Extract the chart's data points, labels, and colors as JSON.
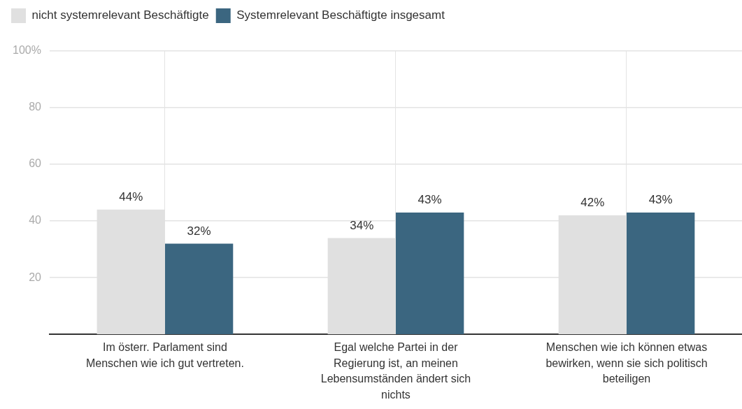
{
  "chart_data": {
    "type": "bar",
    "categories": [
      "Im österr. Parlament sind Menschen wie ich gut vertreten.",
      "Egal welche Partei in der Regierung ist, an meinen Lebensumständen ändert sich nichts",
      "Menschen wie ich können etwas bewirken, wenn sie sich politisch beteiligen"
    ],
    "series": [
      {
        "name": "nicht systemrelevant Beschäftigte",
        "color": "#e0e0e0",
        "values": [
          44,
          34,
          42
        ],
        "value_labels": [
          "44%",
          "34%",
          "42%"
        ]
      },
      {
        "name": "Systemrelevant Beschäftigte insgesamt",
        "color": "#3b6680",
        "values": [
          32,
          43,
          43
        ],
        "value_labels": [
          "32%",
          "43%",
          "43%"
        ]
      }
    ],
    "ylim": [
      0,
      100
    ],
    "yticks": [
      20,
      40,
      60,
      80,
      {
        "value": 100,
        "label": "100%"
      }
    ],
    "grid": true,
    "legend": "top left"
  }
}
